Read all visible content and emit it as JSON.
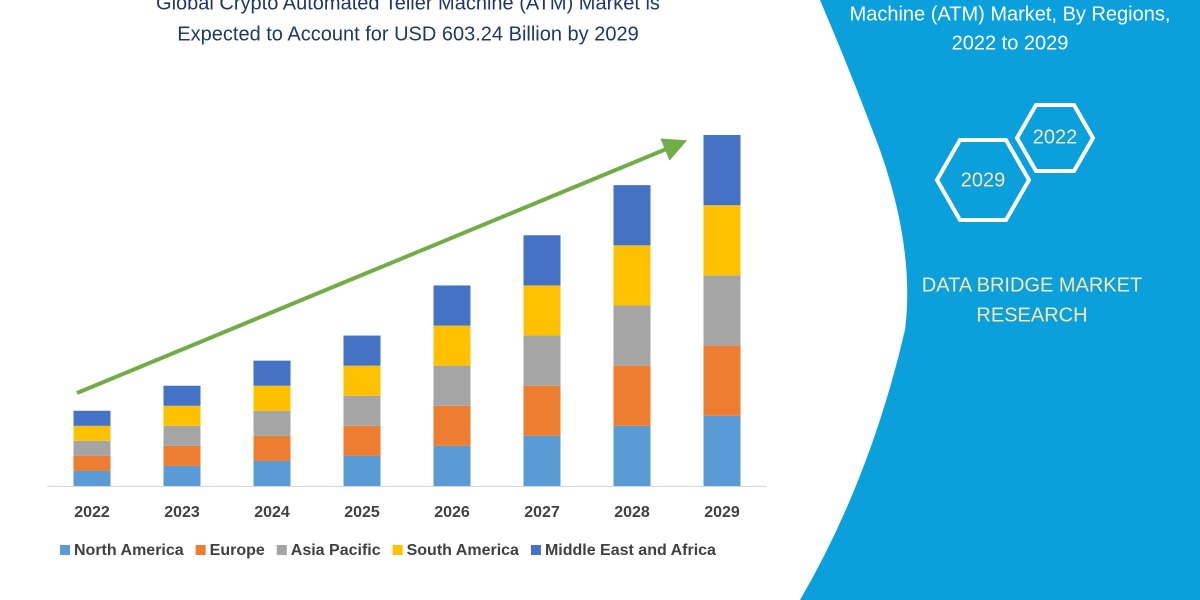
{
  "chart_data": {
    "type": "stacked-bar",
    "title": [
      "Global Crypto Automated Teller Machine (ATM) Market is",
      "Expected to Account for USD 603.24 Billion by 2029"
    ],
    "categories": [
      "2022",
      "2023",
      "2024",
      "2025",
      "2026",
      "2027",
      "2028",
      "2029"
    ],
    "series": [
      {
        "name": "North America",
        "color": "#5b9bd5",
        "values": [
          15,
          20,
          25,
          30,
          40,
          50,
          60,
          70
        ]
      },
      {
        "name": "Europe",
        "color": "#ed7d31",
        "values": [
          15,
          20,
          25,
          30,
          40,
          50,
          60,
          70
        ]
      },
      {
        "name": "Asia Pacific",
        "color": "#a5a5a5",
        "values": [
          15,
          20,
          25,
          30,
          40,
          50,
          60,
          70
        ]
      },
      {
        "name": "South America",
        "color": "#ffc000",
        "values": [
          15,
          20,
          25,
          30,
          40,
          50,
          60,
          70
        ]
      },
      {
        "name": "Middle East and Africa",
        "color": "#4472c4",
        "values": [
          15,
          20,
          25,
          30,
          40,
          50,
          60,
          70
        ]
      }
    ],
    "ylim": [
      0,
      350
    ],
    "legend": "bottom"
  },
  "panel": {
    "heading": [
      "Machine (ATM) Market, By Regions,",
      "2022 to 2029"
    ],
    "hexagons": [
      "2022",
      "2029"
    ],
    "brand": [
      "DATA BRIDGE MARKET",
      "RESEARCH"
    ]
  }
}
